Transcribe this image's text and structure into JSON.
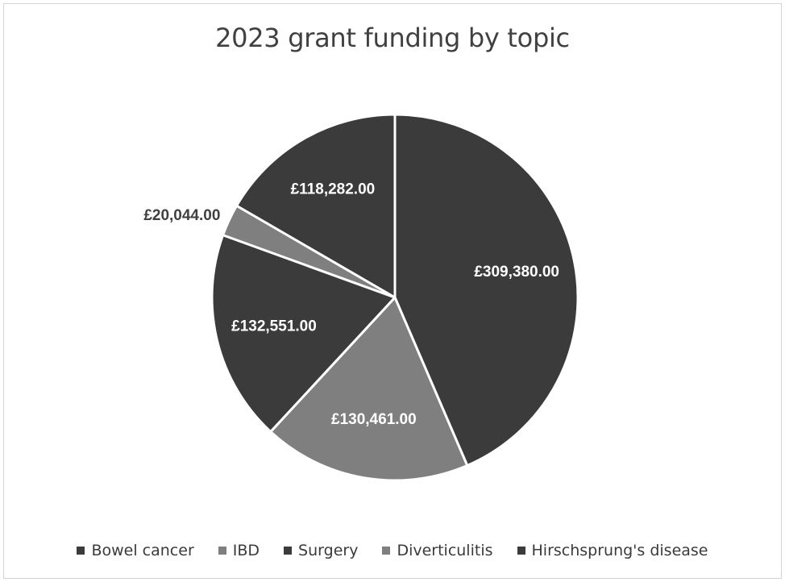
{
  "chart_data": {
    "type": "pie",
    "title": "2023 grant funding by topic",
    "categories": [
      "Bowel cancer",
      "IBD",
      "Surgery",
      "Diverticulitis",
      "Hirschsprung's disease"
    ],
    "values": [
      309380,
      130461,
      132551,
      20044,
      118282
    ],
    "data_labels": [
      "£309,380.00",
      "£130,461.00",
      "£132,551.00",
      "£20,044.00",
      "£118,282.00"
    ],
    "colors": [
      "#3b3b3b",
      "#7f7f7f",
      "#3b3b3b",
      "#7f7f7f",
      "#3b3b3b"
    ],
    "legend_position": "bottom",
    "start_angle_deg": 0,
    "direction": "clockwise"
  }
}
